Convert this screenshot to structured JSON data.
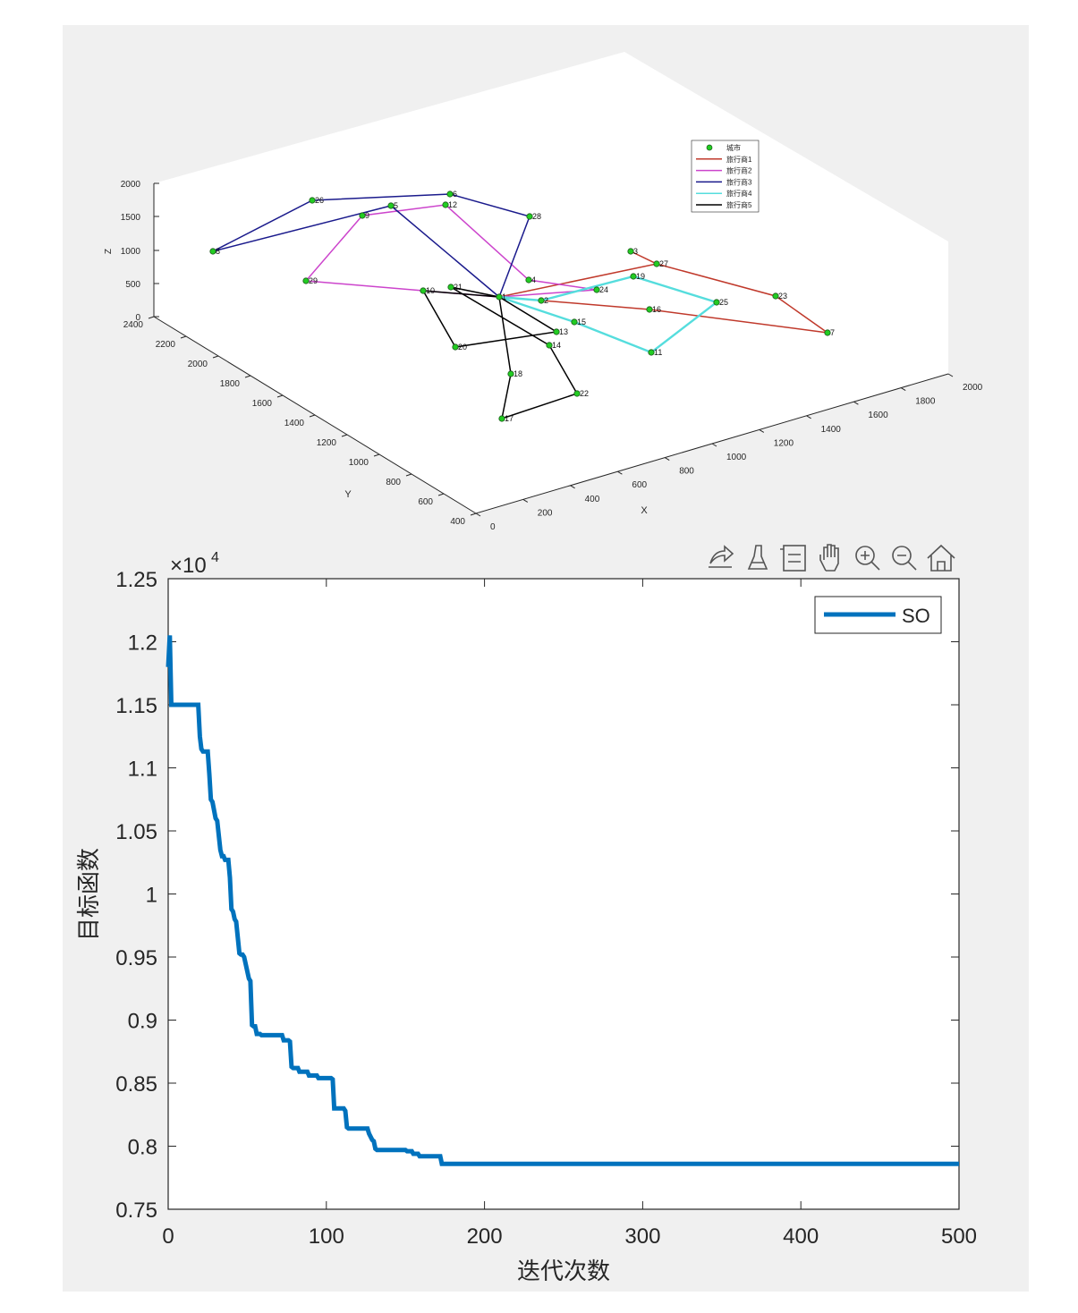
{
  "toolbar": {
    "items": [
      {
        "name": "export-icon"
      },
      {
        "name": "brush-icon"
      },
      {
        "name": "data-tips-icon"
      },
      {
        "name": "pan-icon"
      },
      {
        "name": "zoom-in-icon"
      },
      {
        "name": "zoom-out-icon"
      },
      {
        "name": "home-icon"
      }
    ]
  },
  "chart_data": [
    {
      "type": "line3d",
      "xlabel": "X",
      "ylabel": "Y",
      "zlabel": "Z",
      "xticks": [
        "0",
        "200",
        "400",
        "600",
        "800",
        "1000",
        "1200",
        "1400",
        "1600",
        "1800",
        "2000"
      ],
      "yticks": [
        "400",
        "600",
        "800",
        "1000",
        "1200",
        "1400",
        "1600",
        "1800",
        "2000",
        "2200",
        "2400"
      ],
      "zticks": [
        "0",
        "500",
        "1000",
        "1500",
        "2000"
      ],
      "legend": {
        "placement": "top-right",
        "entries": [
          {
            "label": "城市",
            "color": "#22cc22",
            "kind": "marker"
          },
          {
            "label": "旅行商1",
            "color": "#c0392b",
            "kind": "line"
          },
          {
            "label": "旅行商2",
            "color": "#cc44cc",
            "kind": "line"
          },
          {
            "label": "旅行商3",
            "color": "#1a1a8c",
            "kind": "line"
          },
          {
            "label": "旅行商4",
            "color": "#55dddd",
            "kind": "line"
          },
          {
            "label": "旅行商5",
            "color": "#000000",
            "kind": "line"
          }
        ]
      },
      "cities": [
        {
          "id": "1",
          "label": "1"
        },
        {
          "id": "2",
          "label": "2"
        },
        {
          "id": "3",
          "label": "3"
        },
        {
          "id": "4",
          "label": "4"
        },
        {
          "id": "5",
          "label": "5"
        },
        {
          "id": "6",
          "label": "6"
        },
        {
          "id": "7",
          "label": "7"
        },
        {
          "id": "8",
          "label": "8"
        },
        {
          "id": "9",
          "label": "9"
        },
        {
          "id": "10",
          "label": "10"
        },
        {
          "id": "11",
          "label": "11"
        },
        {
          "id": "12",
          "label": "12"
        },
        {
          "id": "13",
          "label": "13"
        },
        {
          "id": "14",
          "label": "14"
        },
        {
          "id": "15",
          "label": "15"
        },
        {
          "id": "16",
          "label": "16"
        },
        {
          "id": "17",
          "label": "17"
        },
        {
          "id": "18",
          "label": "18"
        },
        {
          "id": "19",
          "label": "19"
        },
        {
          "id": "20",
          "label": "20"
        },
        {
          "id": "21",
          "label": "21"
        },
        {
          "id": "22",
          "label": "22"
        },
        {
          "id": "23",
          "label": "23"
        },
        {
          "id": "24",
          "label": "24"
        },
        {
          "id": "25",
          "label": "25"
        },
        {
          "id": "26",
          "label": "26"
        },
        {
          "id": "27",
          "label": "27"
        },
        {
          "id": "28",
          "label": "28"
        },
        {
          "id": "29",
          "label": "29"
        }
      ],
      "routes": [
        {
          "name": "旅行商1",
          "color": "#c0392b",
          "path": [
            "1",
            "16",
            "7",
            "23",
            "27",
            "3",
            "27",
            "1"
          ]
        },
        {
          "name": "旅行商2",
          "color": "#cc44cc",
          "path": [
            "1",
            "10",
            "29",
            "9",
            "12",
            "4",
            "24",
            "1"
          ]
        },
        {
          "name": "旅行商3",
          "color": "#1a1a8c",
          "path": [
            "1",
            "5",
            "8",
            "26",
            "6",
            "28",
            "1"
          ]
        },
        {
          "name": "旅行商4",
          "color": "#55dddd",
          "path": [
            "1",
            "2",
            "19",
            "25",
            "11",
            "15",
            "1"
          ]
        },
        {
          "name": "旅行商5",
          "color": "#000000",
          "path": [
            "1",
            "21",
            "14",
            "22",
            "17",
            "18",
            "1",
            "13",
            "20",
            "10",
            "1"
          ]
        }
      ]
    },
    {
      "type": "line",
      "xlabel": "迭代次数",
      "ylabel": "目标函数",
      "xlim": [
        0,
        500
      ],
      "ylim": [
        7500,
        12500
      ],
      "xticks": [
        0,
        100,
        200,
        300,
        400,
        500
      ],
      "yticks": [
        7500,
        8000,
        8500,
        9000,
        9500,
        10000,
        10500,
        11000,
        11500,
        12000,
        12500
      ],
      "ytick_labels": [
        "0.75",
        "0.8",
        "0.85",
        "0.9",
        "0.95",
        "1",
        "1.05",
        "1.1",
        "1.15",
        "1.2",
        "1.25"
      ],
      "xtick_labels": [
        "0",
        "100",
        "200",
        "300",
        "400",
        "500"
      ],
      "exponent_label": "×10",
      "exponent_power": "4",
      "legend": {
        "placement": "top-right"
      },
      "series": [
        {
          "name": "SO",
          "color": "#0072bd",
          "x": [
            0,
            1,
            2,
            19,
            20,
            21,
            22,
            25,
            26,
            27,
            28,
            30,
            31,
            33,
            34,
            35,
            36,
            38,
            39,
            40,
            41,
            42,
            43,
            45,
            46,
            47,
            48,
            51,
            52,
            53,
            54,
            55,
            56,
            58,
            59,
            72,
            73,
            76,
            77,
            78,
            79,
            82,
            83,
            88,
            89,
            94,
            95,
            103,
            104,
            105,
            111,
            112,
            113,
            114,
            115,
            126,
            127,
            129,
            130,
            131,
            132,
            150,
            151,
            154,
            155,
            158,
            159,
            172,
            173,
            500
          ],
          "values": [
            11800,
            12050,
            11500,
            11500,
            11250,
            11150,
            11130,
            11130,
            10950,
            10750,
            10730,
            10600,
            10580,
            10350,
            10300,
            10300,
            10270,
            10270,
            10130,
            9880,
            9860,
            9800,
            9780,
            9530,
            9520,
            9520,
            9500,
            9330,
            9310,
            8960,
            8950,
            8950,
            8890,
            8890,
            8880,
            8880,
            8840,
            8840,
            8830,
            8630,
            8620,
            8620,
            8590,
            8590,
            8560,
            8560,
            8540,
            8540,
            8530,
            8300,
            8300,
            8280,
            8150,
            8140,
            8140,
            8140,
            8100,
            8050,
            8040,
            7980,
            7970,
            7970,
            7960,
            7960,
            7940,
            7940,
            7920,
            7920,
            7860,
            7860
          ]
        }
      ]
    }
  ]
}
